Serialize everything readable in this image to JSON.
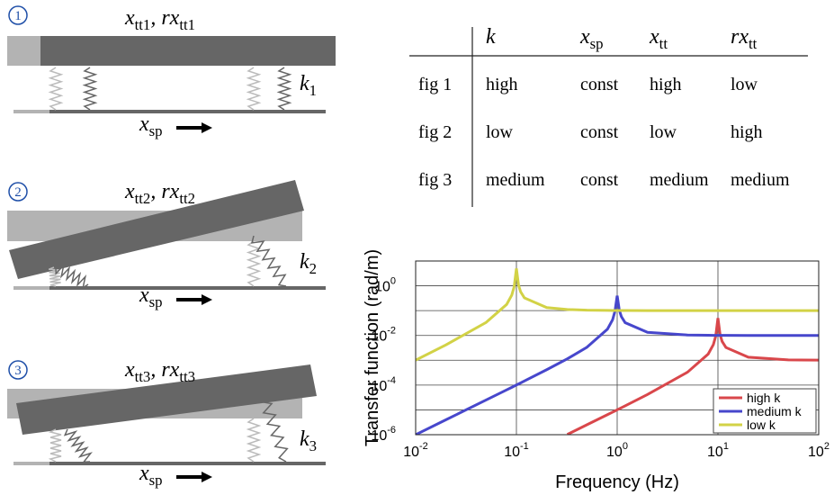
{
  "panels": [
    {
      "number": "1",
      "title": [
        {
          "t": "x"
        },
        {
          "t": "tt1",
          "sub": true
        },
        {
          "t": ", rx"
        },
        {
          "t": "tt1",
          "sub": true
        }
      ],
      "spring": [
        {
          "t": "k"
        },
        {
          "t": "1",
          "sub": true
        }
      ],
      "motion": [
        {
          "t": "x"
        },
        {
          "t": "sp",
          "sub": true
        }
      ]
    },
    {
      "number": "2",
      "title": [
        {
          "t": "x"
        },
        {
          "t": "tt2",
          "sub": true
        },
        {
          "t": ", rx"
        },
        {
          "t": "tt2",
          "sub": true
        }
      ],
      "spring": [
        {
          "t": "k"
        },
        {
          "t": "2",
          "sub": true
        }
      ],
      "motion": [
        {
          "t": "x"
        },
        {
          "t": "sp",
          "sub": true
        }
      ]
    },
    {
      "number": "3",
      "title": [
        {
          "t": "x"
        },
        {
          "t": "tt3",
          "sub": true
        },
        {
          "t": ", rx"
        },
        {
          "t": "tt3",
          "sub": true
        }
      ],
      "spring": [
        {
          "t": "k"
        },
        {
          "t": "3",
          "sub": true
        }
      ],
      "motion": [
        {
          "t": "x"
        },
        {
          "t": "sp",
          "sub": true
        }
      ]
    }
  ],
  "table": {
    "header": [
      [
        {
          "t": "k"
        }
      ],
      [
        {
          "t": "x"
        },
        {
          "t": "sp",
          "sub": true
        }
      ],
      [
        {
          "t": "x"
        },
        {
          "t": "tt",
          "sub": true
        }
      ],
      [
        {
          "t": "rx"
        },
        {
          "t": "tt",
          "sub": true
        }
      ]
    ],
    "rows": [
      [
        "fig 1",
        "high",
        "const",
        "high",
        "low"
      ],
      [
        "fig 2",
        "low",
        "const",
        "low",
        "high"
      ],
      [
        "fig 3",
        "medium",
        "const",
        "medium",
        "medium"
      ]
    ]
  },
  "chart_data": {
    "type": "line",
    "xlabel": "Frequency (Hz)",
    "ylabel": "Transfer function (rad/m)",
    "xlog": true,
    "ylog": true,
    "grid": true,
    "legend": "lower right",
    "xlim": [
      0.01,
      100
    ],
    "ylim": [
      1e-06,
      10
    ],
    "xticks": [
      {
        "value": 0.01,
        "base": "10",
        "exp": "-2"
      },
      {
        "value": 0.1,
        "base": "10",
        "exp": "-1"
      },
      {
        "value": 1,
        "base": "10",
        "exp": "0"
      },
      {
        "value": 10,
        "base": "10",
        "exp": "1"
      },
      {
        "value": 100,
        "base": "10",
        "exp": "2"
      }
    ],
    "yticks": [
      {
        "value": 1e-06,
        "base": "10",
        "exp": "-6"
      },
      {
        "value": 0.0001,
        "base": "10",
        "exp": "-4"
      },
      {
        "value": 0.01,
        "base": "10",
        "exp": "-2"
      },
      {
        "value": 1,
        "base": "10",
        "exp": "0"
      }
    ],
    "ygrid": [
      1e-05,
      0.001,
      0.1
    ],
    "x": [
      0.01,
      0.02,
      0.05,
      0.08,
      0.09,
      0.095,
      0.1,
      0.105,
      0.11,
      0.12,
      0.2,
      0.32,
      0.5,
      0.8,
      0.9,
      0.95,
      1,
      1.05,
      1.1,
      1.2,
      2,
      5,
      8,
      9,
      9.5,
      10,
      10.5,
      11,
      12,
      20,
      50,
      100
    ],
    "series": [
      {
        "name": "high k",
        "color": "#d9474b",
        "values": [
          null,
          null,
          null,
          null,
          null,
          null,
          null,
          null,
          null,
          null,
          null,
          1.02e-06,
          2.51e-06,
          6.4e-06,
          8.1e-06,
          9.03e-06,
          1.01e-05,
          1.11e-05,
          1.22e-05,
          1.46e-05,
          4.17e-05,
          0.000333,
          0.00178,
          0.00426,
          0.00926,
          0.05,
          0.0108,
          0.00576,
          0.00327,
          0.00133,
          0.00104,
          0.00101
        ]
      },
      {
        "name": "medium k",
        "color": "#4747cc",
        "values": [
          1e-06,
          4e-06,
          2.5e-05,
          6.4e-05,
          8.1e-05,
          9.1e-05,
          0.000101,
          0.000111,
          0.000122,
          0.000146,
          0.000417,
          0.00114,
          0.00333,
          0.0178,
          0.0426,
          0.0926,
          0.4,
          0.104,
          0.0576,
          0.0327,
          0.0133,
          0.0104,
          0.0102,
          0.0101,
          0.0101,
          0.0101,
          0.0101,
          0.0101,
          0.0101,
          0.01,
          0.01,
          0.01
        ]
      },
      {
        "name": "low k",
        "color": "#d2d246",
        "values": [
          0.00101,
          0.00417,
          0.0333,
          0.178,
          0.426,
          0.926,
          5,
          1.07,
          0.576,
          0.327,
          0.133,
          0.111,
          0.104,
          0.102,
          0.101,
          0.101,
          0.101,
          0.101,
          0.101,
          0.101,
          0.1,
          0.1,
          0.1,
          0.1,
          0.1,
          0.1,
          0.1,
          0.1,
          0.1,
          0.1,
          0.1,
          0.1
        ]
      }
    ]
  }
}
